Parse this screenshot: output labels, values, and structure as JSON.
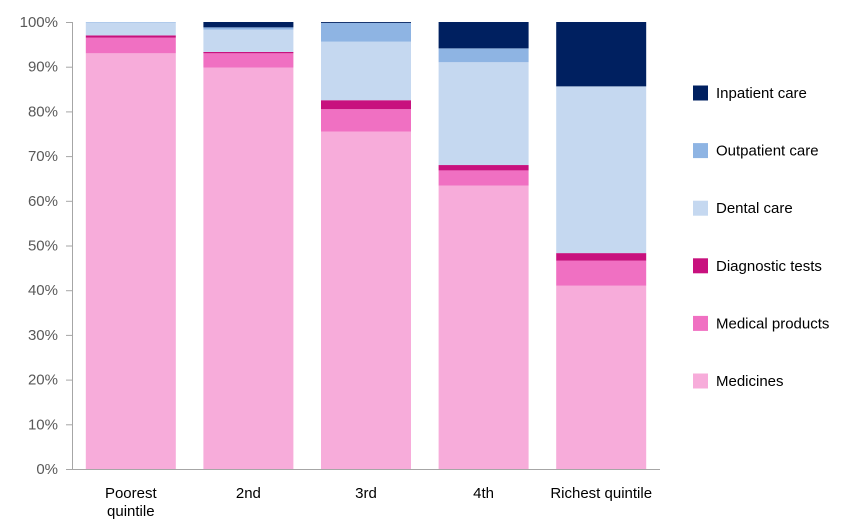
{
  "chart_data": {
    "type": "bar",
    "stacked": true,
    "percent_stacked": true,
    "categories": [
      [
        "Poorest",
        "quintile"
      ],
      [
        "2nd"
      ],
      [
        "3rd"
      ],
      [
        "4th"
      ],
      [
        "Richest quintile"
      ]
    ],
    "series": [
      {
        "name": "Medicines",
        "color": "#F7ACDA",
        "values": [
          93,
          89.8,
          75.5,
          63.4,
          41
        ]
      },
      {
        "name": "Medical products",
        "color": "#F070C2",
        "values": [
          3.5,
          3.2,
          5,
          3.4,
          5.6
        ]
      },
      {
        "name": "Diagnostic tests",
        "color": "#C8117E",
        "values": [
          0.5,
          0.3,
          2,
          1.2,
          1.7
        ]
      },
      {
        "name": "Dental care",
        "color": "#C5D8F0",
        "values": [
          2.9,
          5,
          13.1,
          23,
          37.3
        ]
      },
      {
        "name": "Outpatient care",
        "color": "#8EB4E3",
        "values": [
          0.1,
          0.5,
          4.2,
          3.1,
          0
        ]
      },
      {
        "name": "Inpatient care",
        "color": "#002060",
        "values": [
          0,
          1.2,
          0.2,
          5.9,
          14.4
        ]
      }
    ],
    "ylim": [
      0,
      100
    ],
    "yticks": [
      "0%",
      "10%",
      "20%",
      "30%",
      "40%",
      "50%",
      "60%",
      "70%",
      "80%",
      "90%",
      "100%"
    ],
    "grid": false,
    "legend": "right",
    "legend_order": [
      "Inpatient care",
      "Outpatient care",
      "Dental care",
      "Diagnostic tests",
      "Medical products",
      "Medicines"
    ],
    "title": "",
    "xlabel": "",
    "ylabel": ""
  }
}
